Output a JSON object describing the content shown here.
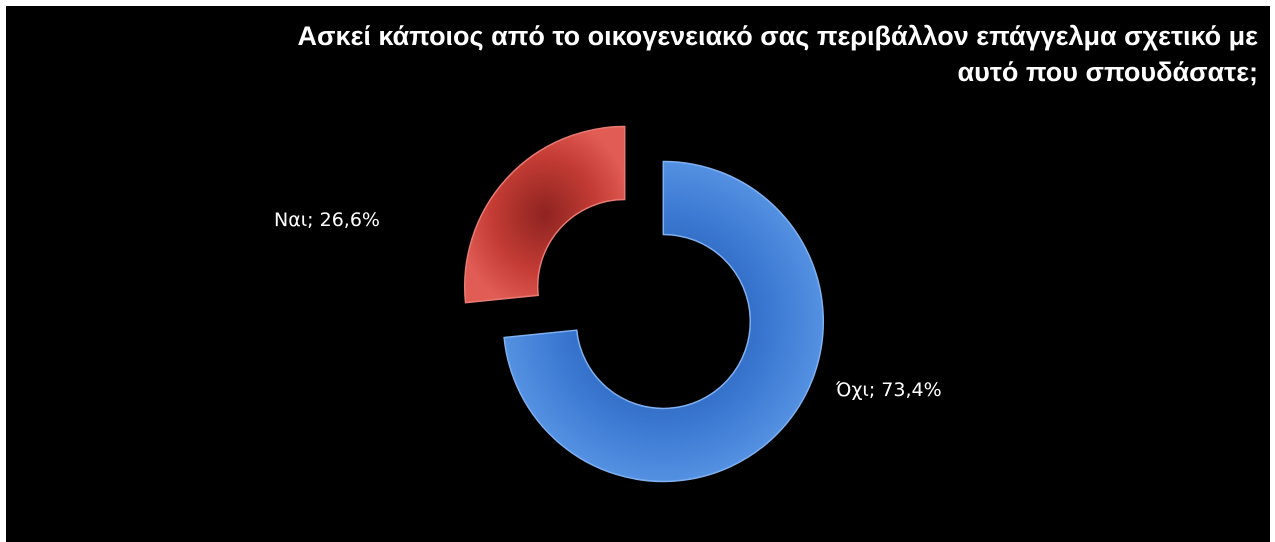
{
  "chart_data": {
    "type": "pie",
    "variant": "exploded-donut",
    "title": "Ασκεί κάποιος από το οικογενειακό σας περιβάλλον επάγγελμα σχετικό με αυτό που σπουδάσατε;",
    "categories": [
      "Ναι",
      "Όχι"
    ],
    "values": [
      26.6,
      73.4
    ],
    "unit": "%",
    "labels": [
      "Ναι; 26,6%",
      "Όχι; 73,4%"
    ],
    "colors": [
      "#c0392b",
      "#3f7fd6"
    ],
    "legend": "none"
  }
}
